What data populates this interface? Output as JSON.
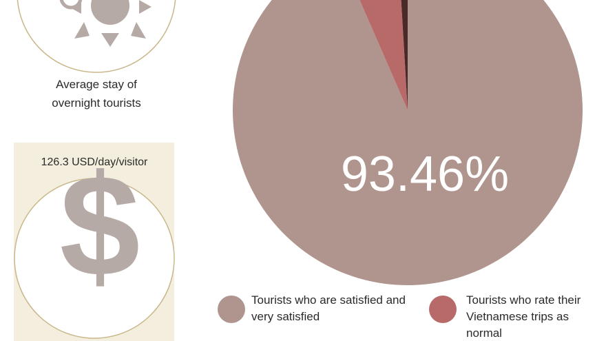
{
  "chart_data": {
    "type": "pie",
    "categories": [
      "Tourists who are satisfied and very satisfied",
      "Tourists who rate their Vietnamese trips as normal",
      null
    ],
    "values": [
      93.46,
      5.6,
      0.94
    ],
    "value_labels": [
      "93.46%",
      null,
      null
    ],
    "colors": [
      "#b0958e",
      "#b86a68",
      "#4a2a28"
    ],
    "start_angle": 0,
    "direction": "clockwise"
  },
  "panels": {
    "stay_label": "Average stay of overnight tourists",
    "spend_label": "126.3 USD/day/visitor",
    "spend_icon": "$"
  }
}
